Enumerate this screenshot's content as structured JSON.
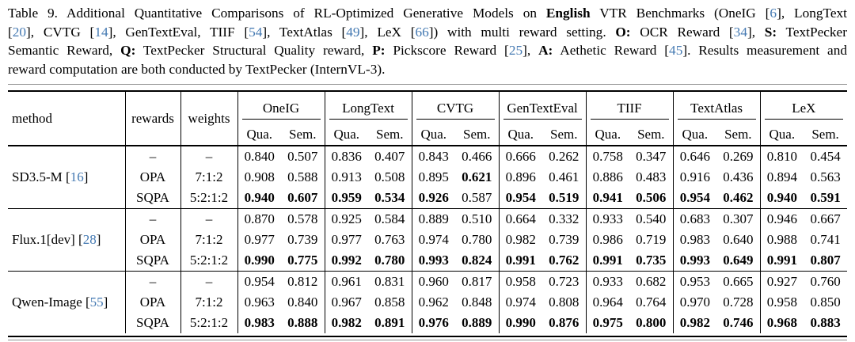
{
  "caption": {
    "lines": [
      [
        {
          "t": "Table 9. Additional Quantitative Comparisons of RL-Optimized Generative Models on ",
          "s": "n"
        },
        {
          "t": "English",
          "s": "b"
        },
        {
          "t": " VTR Benchmarks (OneIG [",
          "s": "n"
        },
        {
          "t": "6",
          "s": "c"
        },
        {
          "t": "], LongText",
          "s": "n"
        }
      ],
      [
        {
          "t": "[",
          "s": "n"
        },
        {
          "t": "20",
          "s": "c"
        },
        {
          "t": "], CVTG [",
          "s": "n"
        },
        {
          "t": "14",
          "s": "c"
        },
        {
          "t": "], GenTextEval, TIIF [",
          "s": "n"
        },
        {
          "t": "54",
          "s": "c"
        },
        {
          "t": "], TextAtlas [",
          "s": "n"
        },
        {
          "t": "49",
          "s": "c"
        },
        {
          "t": "], LeX [",
          "s": "n"
        },
        {
          "t": "66",
          "s": "c"
        },
        {
          "t": "]) with multi reward setting. ",
          "s": "n"
        },
        {
          "t": "O:",
          "s": "b"
        },
        {
          "t": " OCR Reward [",
          "s": "n"
        },
        {
          "t": "34",
          "s": "c"
        },
        {
          "t": "], ",
          "s": "n"
        },
        {
          "t": "S:",
          "s": "b"
        },
        {
          "t": " TextPecker",
          "s": "n"
        }
      ],
      [
        {
          "t": "Semantic Reward, ",
          "s": "n"
        },
        {
          "t": "Q:",
          "s": "b"
        },
        {
          "t": " TextPecker Structural Quality reward, ",
          "s": "n"
        },
        {
          "t": "P:",
          "s": "b"
        },
        {
          "t": " Pickscore Reward [",
          "s": "n"
        },
        {
          "t": "25",
          "s": "c"
        },
        {
          "t": "], ",
          "s": "n"
        },
        {
          "t": "A:",
          "s": "b"
        },
        {
          "t": " Aethetic Reward [",
          "s": "n"
        },
        {
          "t": "45",
          "s": "c"
        },
        {
          "t": "]. Results measurement and",
          "s": "n"
        }
      ],
      [
        {
          "t": "reward computation are both conducted by TextPecker (InternVL-3).",
          "s": "n"
        }
      ]
    ]
  },
  "table": {
    "col_headers": [
      "method",
      "rewards",
      "weights"
    ],
    "benchmarks": [
      "OneIG",
      "LongText",
      "CVTG",
      "GenTextEval",
      "TIIF",
      "TextAtlas",
      "LeX"
    ],
    "subheaders": [
      "Qua.",
      "Sem."
    ],
    "cite_brackets": [
      "[",
      "]"
    ],
    "groups": [
      {
        "method": "SD3.5-M",
        "cite": "16",
        "rows": [
          {
            "rewards": "–",
            "weights": "–",
            "values": [
              "0.840",
              "0.507",
              "0.836",
              "0.407",
              "0.843",
              "0.466",
              "0.666",
              "0.262",
              "0.758",
              "0.347",
              "0.646",
              "0.269",
              "0.810",
              "0.454"
            ],
            "bold": [
              0,
              0,
              0,
              0,
              0,
              0,
              0,
              0,
              0,
              0,
              0,
              0,
              0,
              0
            ]
          },
          {
            "rewards": "OPA",
            "weights": "7:1:2",
            "values": [
              "0.908",
              "0.588",
              "0.913",
              "0.508",
              "0.895",
              "0.621",
              "0.896",
              "0.461",
              "0.886",
              "0.483",
              "0.916",
              "0.436",
              "0.894",
              "0.563"
            ],
            "bold": [
              0,
              0,
              0,
              0,
              0,
              1,
              0,
              0,
              0,
              0,
              0,
              0,
              0,
              0
            ]
          },
          {
            "rewards": "SQPA",
            "weights": "5:2:1:2",
            "values": [
              "0.940",
              "0.607",
              "0.959",
              "0.534",
              "0.926",
              "0.587",
              "0.954",
              "0.519",
              "0.941",
              "0.506",
              "0.954",
              "0.462",
              "0.940",
              "0.591"
            ],
            "bold": [
              1,
              1,
              1,
              1,
              1,
              0,
              1,
              1,
              1,
              1,
              1,
              1,
              1,
              1
            ]
          }
        ]
      },
      {
        "method": "Flux.1[dev]",
        "cite": "28",
        "rows": [
          {
            "rewards": "–",
            "weights": "–",
            "values": [
              "0.870",
              "0.578",
              "0.925",
              "0.584",
              "0.889",
              "0.510",
              "0.664",
              "0.332",
              "0.933",
              "0.540",
              "0.683",
              "0.307",
              "0.946",
              "0.667"
            ],
            "bold": [
              0,
              0,
              0,
              0,
              0,
              0,
              0,
              0,
              0,
              0,
              0,
              0,
              0,
              0
            ]
          },
          {
            "rewards": "OPA",
            "weights": "7:1:2",
            "values": [
              "0.977",
              "0.739",
              "0.977",
              "0.763",
              "0.974",
              "0.780",
              "0.982",
              "0.739",
              "0.986",
              "0.719",
              "0.983",
              "0.640",
              "0.988",
              "0.741"
            ],
            "bold": [
              0,
              0,
              0,
              0,
              0,
              0,
              0,
              0,
              0,
              0,
              0,
              0,
              0,
              0
            ]
          },
          {
            "rewards": "SQPA",
            "weights": "5:2:1:2",
            "values": [
              "0.990",
              "0.775",
              "0.992",
              "0.780",
              "0.993",
              "0.824",
              "0.991",
              "0.762",
              "0.991",
              "0.735",
              "0.993",
              "0.649",
              "0.991",
              "0.807"
            ],
            "bold": [
              1,
              1,
              1,
              1,
              1,
              1,
              1,
              1,
              1,
              1,
              1,
              1,
              1,
              1
            ]
          }
        ]
      },
      {
        "method": "Qwen-Image",
        "cite": "55",
        "rows": [
          {
            "rewards": "–",
            "weights": "–",
            "values": [
              "0.954",
              "0.812",
              "0.961",
              "0.831",
              "0.960",
              "0.817",
              "0.958",
              "0.723",
              "0.933",
              "0.682",
              "0.953",
              "0.665",
              "0.927",
              "0.760"
            ],
            "bold": [
              0,
              0,
              0,
              0,
              0,
              0,
              0,
              0,
              0,
              0,
              0,
              0,
              0,
              0
            ]
          },
          {
            "rewards": "OPA",
            "weights": "7:1:2",
            "values": [
              "0.963",
              "0.840",
              "0.967",
              "0.858",
              "0.962",
              "0.848",
              "0.974",
              "0.808",
              "0.964",
              "0.764",
              "0.970",
              "0.728",
              "0.958",
              "0.850"
            ],
            "bold": [
              0,
              0,
              0,
              0,
              0,
              0,
              0,
              0,
              0,
              0,
              0,
              0,
              0,
              0
            ]
          },
          {
            "rewards": "SQPA",
            "weights": "5:2:1:2",
            "values": [
              "0.983",
              "0.888",
              "0.982",
              "0.891",
              "0.976",
              "0.889",
              "0.990",
              "0.876",
              "0.975",
              "0.800",
              "0.982",
              "0.746",
              "0.968",
              "0.883"
            ],
            "bold": [
              1,
              1,
              1,
              1,
              1,
              1,
              1,
              1,
              1,
              1,
              1,
              1,
              1,
              1
            ]
          }
        ]
      }
    ]
  }
}
